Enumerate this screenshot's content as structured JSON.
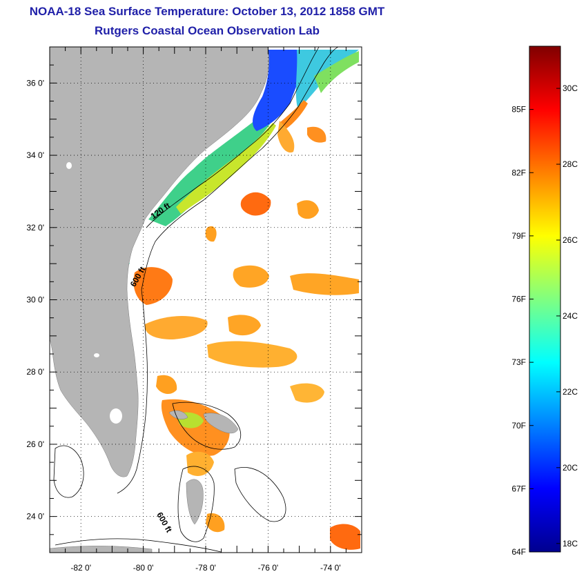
{
  "title": "NOAA-18 Sea Surface Temperature:  October 13, 2012 1858 GMT",
  "subtitle": "Rutgers Coastal Ocean Observation Lab",
  "map": {
    "lon_range": [
      -83,
      -73
    ],
    "lat_range": [
      23,
      37
    ],
    "x_ticks": [
      {
        "value": -82,
        "label": "-82 0'"
      },
      {
        "value": -80,
        "label": "-80 0'"
      },
      {
        "value": -78,
        "label": "-78 0'"
      },
      {
        "value": -76,
        "label": "-76 0'"
      },
      {
        "value": -74,
        "label": "-74 0'"
      }
    ],
    "y_ticks": [
      {
        "value": 36,
        "label": "36 0'"
      },
      {
        "value": 34,
        "label": "34 0'"
      },
      {
        "value": 32,
        "label": "32 0'"
      },
      {
        "value": 30,
        "label": "30 0'"
      },
      {
        "value": 28,
        "label": "28 0'"
      },
      {
        "value": 26,
        "label": "26 0'"
      },
      {
        "value": 24,
        "label": "24 0'"
      }
    ],
    "grid": "dotted",
    "land_color": "#b5b5b5",
    "contour_labels": [
      {
        "text": "120 ft",
        "lon": -79.4,
        "lat": 32.4
      },
      {
        "text": "600 ft",
        "lon": -80.1,
        "lat": 30.6
      },
      {
        "text": "600 ft",
        "lon": -79.4,
        "lat": 23.8
      }
    ]
  },
  "colorbar": {
    "min_f": 64,
    "max_f": 88,
    "fahrenheit_labels": [
      {
        "f": 85,
        "label": "85F"
      },
      {
        "f": 82,
        "label": "82F"
      },
      {
        "f": 79,
        "label": "79F"
      },
      {
        "f": 76,
        "label": "76F"
      },
      {
        "f": 73,
        "label": "73F"
      },
      {
        "f": 70,
        "label": "70F"
      },
      {
        "f": 67,
        "label": "67F"
      },
      {
        "f": 64,
        "label": "64F"
      }
    ],
    "celsius_labels": [
      {
        "c": 30,
        "label": "30C"
      },
      {
        "c": 28,
        "label": "28C"
      },
      {
        "c": 26,
        "label": "26C"
      },
      {
        "c": 24,
        "label": "24C"
      },
      {
        "c": 22,
        "label": "22C"
      },
      {
        "c": 20,
        "label": "20C"
      },
      {
        "c": 18,
        "label": "18C"
      }
    ],
    "colors": [
      "#00008f",
      "#0000ff",
      "#0080ff",
      "#00ffff",
      "#80ff80",
      "#ffff00",
      "#ff8000",
      "#ff0000",
      "#800000"
    ]
  }
}
